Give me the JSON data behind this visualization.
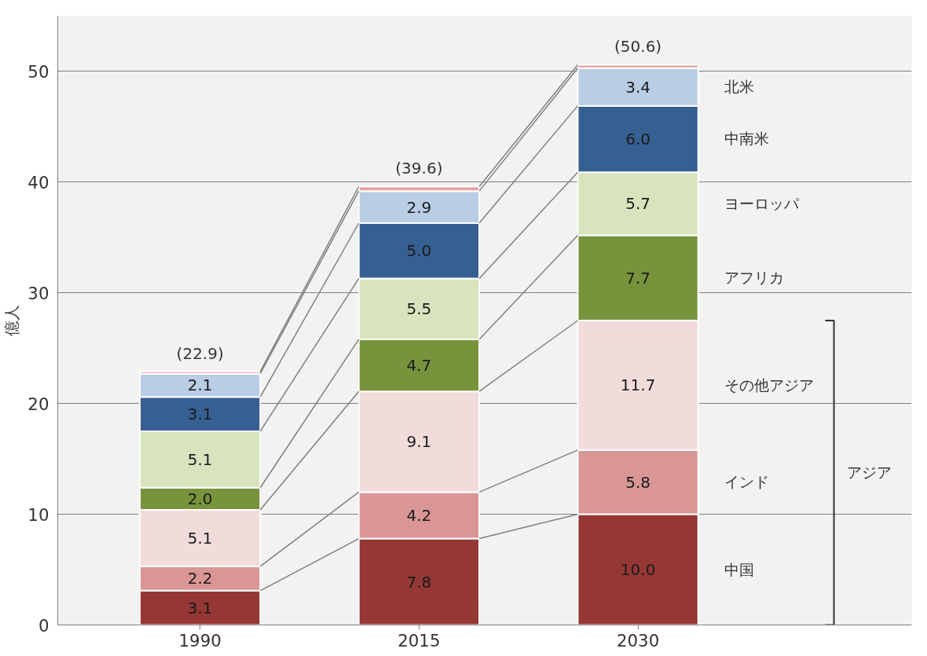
{
  "chart_data": {
    "type": "bar",
    "stacked": true,
    "ylabel": "億人",
    "categories": [
      "1990",
      "2015",
      "2030"
    ],
    "series": [
      {
        "name": "中国",
        "color": "#953735",
        "values": [
          3.1,
          7.8,
          10.0
        ],
        "value_labels": [
          "3.1",
          "7.8",
          "10.0"
        ]
      },
      {
        "name": "インド",
        "color": "#d99694",
        "values": [
          2.2,
          4.2,
          5.8
        ],
        "value_labels": [
          "2.2",
          "4.2",
          "5.8"
        ]
      },
      {
        "name": "その他アジア",
        "color": "#f2dcdb",
        "values": [
          5.1,
          9.1,
          11.7
        ],
        "value_labels": [
          "5.1",
          "9.1",
          "11.7"
        ]
      },
      {
        "name": "アフリカ",
        "color": "#77933c",
        "values": [
          2.0,
          4.7,
          7.7
        ],
        "value_labels": [
          "2.0",
          "4.7",
          "7.7"
        ]
      },
      {
        "name": "ヨーロッパ",
        "color": "#d7e4bd",
        "values": [
          5.1,
          5.5,
          5.7
        ],
        "value_labels": [
          "5.1",
          "5.5",
          "5.7"
        ]
      },
      {
        "name": "中南米",
        "color": "#376092",
        "values": [
          3.1,
          5.0,
          6.0
        ],
        "value_labels": [
          "3.1",
          "5.0",
          "6.0"
        ]
      },
      {
        "name": "北米",
        "color": "#b9cde5",
        "values": [
          2.1,
          2.9,
          3.4
        ],
        "value_labels": [
          "2.1",
          "2.9",
          "3.4"
        ]
      },
      {
        "color": "#e6a09e",
        "values": [
          0.2,
          0.4,
          0.3
        ]
      }
    ],
    "totals": [
      "(22.9)",
      "(39.6)",
      "(50.6)"
    ],
    "annotations": [
      "アジア"
    ],
    "ylim": [
      0,
      55
    ],
    "yticks": [
      0,
      10,
      20,
      30,
      40,
      50
    ],
    "grid": "y"
  }
}
